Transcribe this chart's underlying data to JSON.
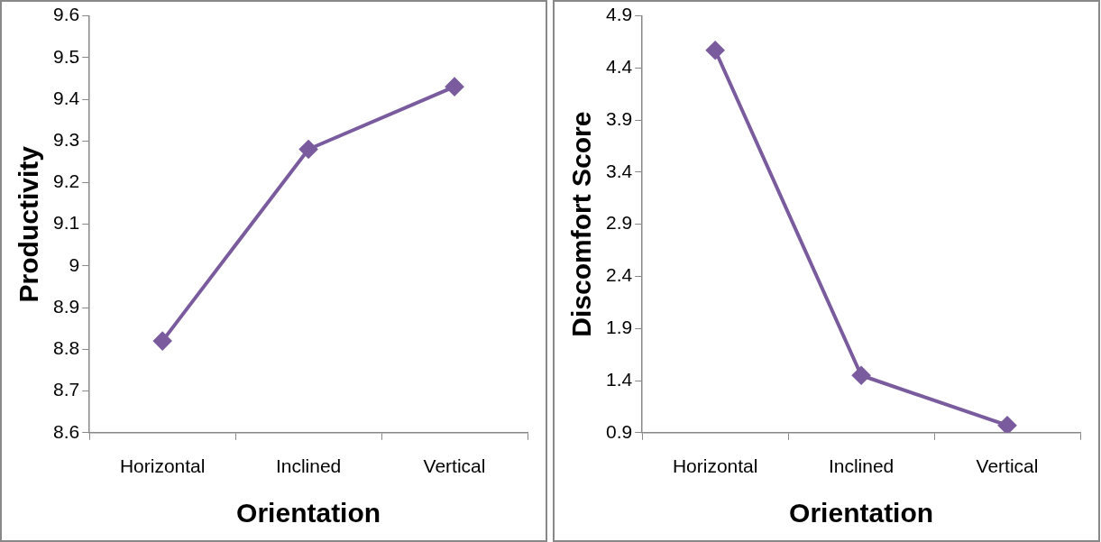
{
  "chart_data": [
    {
      "type": "line",
      "xlabel": "Orientation",
      "ylabel": "Productivity",
      "categories": [
        "Horizontal",
        "Inclined",
        "Vertical"
      ],
      "series": [
        {
          "color": "#7a5c9e",
          "values": [
            8.82,
            9.28,
            9.43
          ]
        }
      ],
      "ylim": [
        8.6,
        9.6
      ],
      "yticks": [
        8.6,
        8.7,
        8.8,
        8.9,
        9,
        9.1,
        9.2,
        9.3,
        9.4,
        9.5,
        9.6
      ],
      "grid": false,
      "legend": false,
      "marker": "diamond",
      "line_style": "solid"
    },
    {
      "type": "line",
      "xlabel": "Orientation",
      "ylabel": "Discomfort Score",
      "categories": [
        "Horizontal",
        "Inclined",
        "Vertical"
      ],
      "series": [
        {
          "color": "#7a5c9e",
          "values": [
            4.57,
            1.45,
            0.97
          ]
        }
      ],
      "ylim": [
        0.9,
        4.9
      ],
      "yticks": [
        0.9,
        1.4,
        1.9,
        2.4,
        2.9,
        3.4,
        3.9,
        4.4,
        4.9
      ],
      "grid": false,
      "legend": false,
      "marker": "diamond",
      "line_style": "solid"
    }
  ]
}
